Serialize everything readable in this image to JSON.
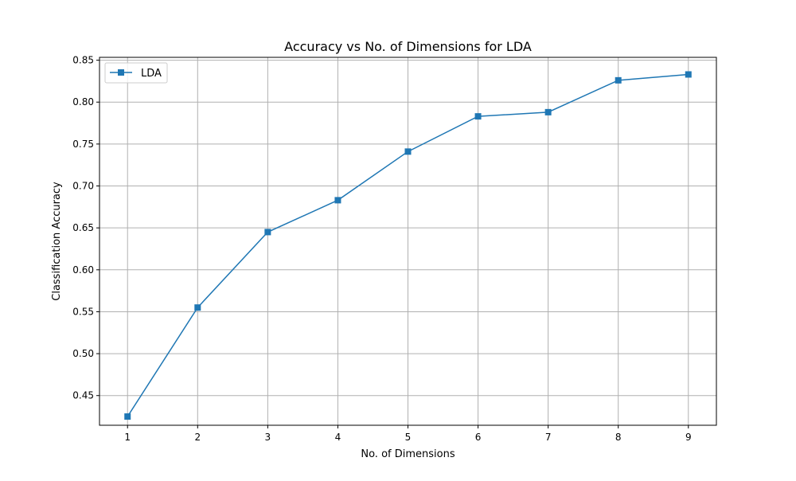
{
  "chart_data": {
    "type": "line",
    "title": "Accuracy vs No. of Dimensions for LDA",
    "xlabel": "No. of Dimensions",
    "ylabel": "Classification Accuracy",
    "x": [
      1,
      2,
      3,
      4,
      5,
      6,
      7,
      8,
      9
    ],
    "series": [
      {
        "name": "LDA",
        "marker": "square",
        "color": "#1f77b4",
        "values": [
          0.425,
          0.555,
          0.645,
          0.683,
          0.741,
          0.783,
          0.788,
          0.826,
          0.833
        ]
      }
    ],
    "xlim": [
      0.6,
      9.4
    ],
    "ylim": [
      0.4146,
      0.8534
    ],
    "xticks": [
      "1",
      "2",
      "3",
      "4",
      "5",
      "6",
      "7",
      "8",
      "9"
    ],
    "yticks": [
      "0.45",
      "0.50",
      "0.55",
      "0.60",
      "0.65",
      "0.70",
      "0.75",
      "0.80",
      "0.85"
    ],
    "grid": true,
    "legend_position": "top-left",
    "grid_color": "#b0b0b0",
    "background": "#ffffff"
  }
}
